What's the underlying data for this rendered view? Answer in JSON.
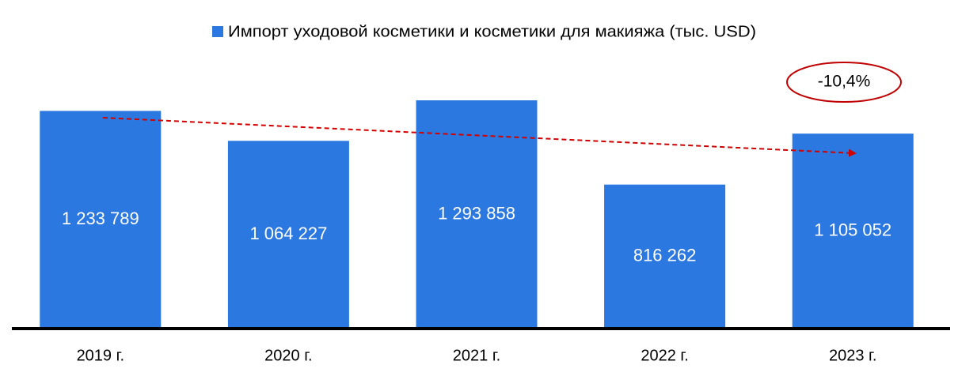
{
  "chart_data": {
    "type": "bar",
    "categories": [
      "2019 г.",
      "2020 г.",
      "2021 г.",
      "2022 г.",
      "2023 г."
    ],
    "series": [
      {
        "name": "Импорт уходовой косметики и косметики для макияжа (тыс. USD)",
        "color": "#2a78e0",
        "values": [
          1233789,
          1064227,
          1293858,
          816262,
          1105052
        ],
        "value_labels": [
          "1 233 789",
          "1 064 227",
          "1 293 858",
          "816 262",
          "1 105 052"
        ]
      }
    ],
    "annotation": "-10,4%",
    "legend": "top"
  }
}
